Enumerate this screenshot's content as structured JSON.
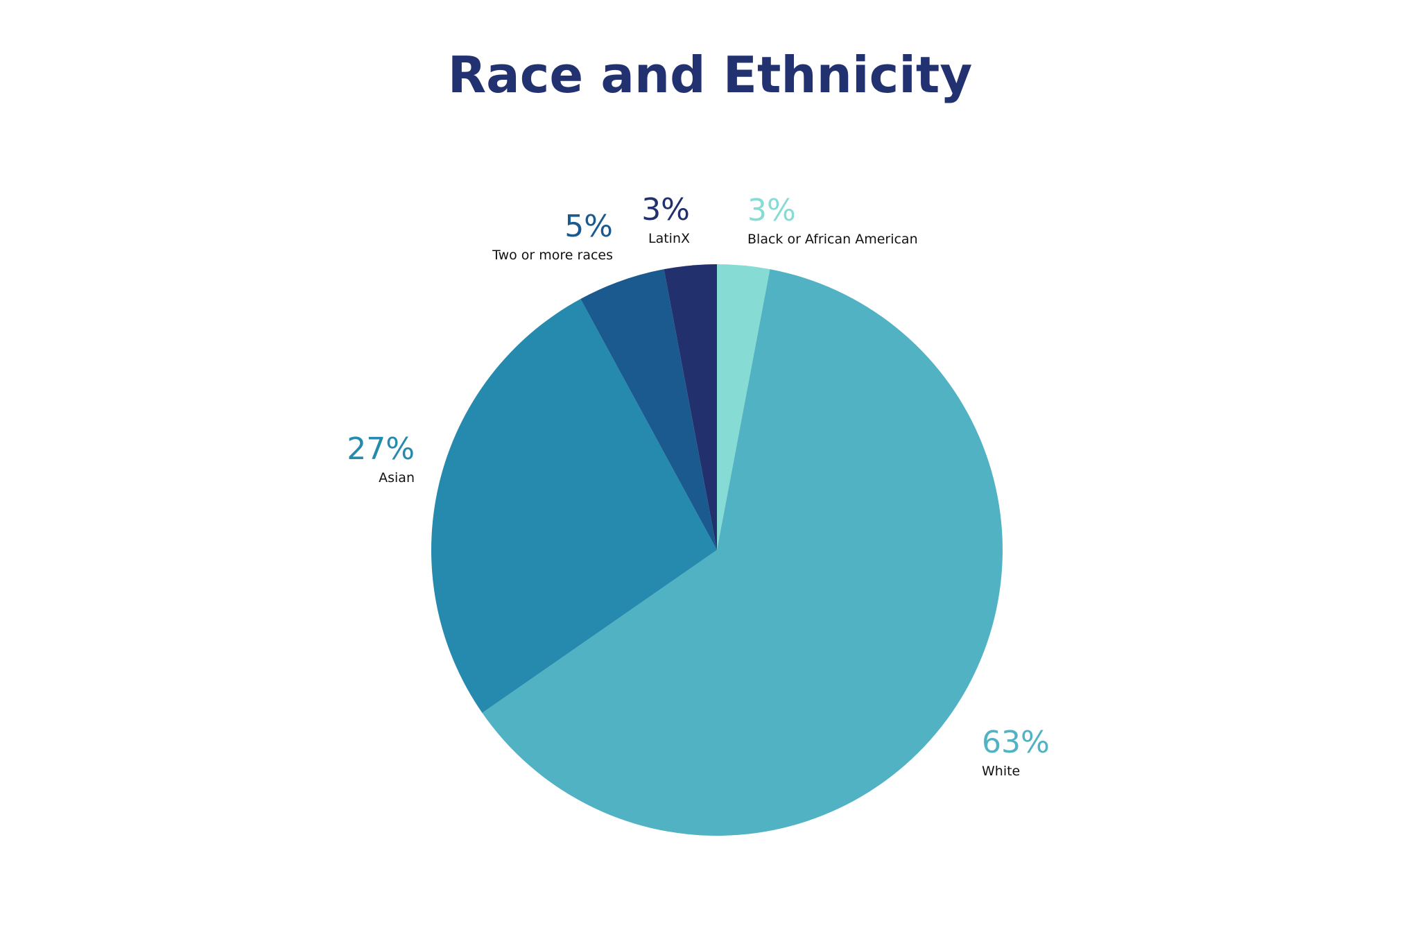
{
  "chart_data": {
    "type": "pie",
    "title": "Race and Ethnicity",
    "slices": [
      {
        "label": "Black or African American",
        "value": 3,
        "value_label": "3%",
        "color": "#86DCD4"
      },
      {
        "label": "White",
        "value": 63,
        "value_label": "63%",
        "color": "#50B2C2"
      },
      {
        "label": "Asian",
        "value": 27,
        "value_label": "27%",
        "color": "#258AAD"
      },
      {
        "label": "Two or more races",
        "value": 5,
        "value_label": "5%",
        "color": "#1A5A8E"
      },
      {
        "label": "LatinX",
        "value": 3,
        "value_label": "3%",
        "color": "#22316E"
      }
    ],
    "start": "12 o'clock",
    "direction": "clockwise",
    "legend": "none"
  }
}
